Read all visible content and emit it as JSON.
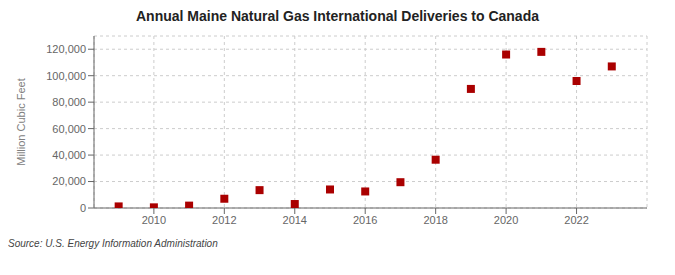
{
  "chart_data": {
    "type": "scatter",
    "title": "Annual Maine Natural Gas International Deliveries to Canada",
    "y_label": "Million Cubic Feet",
    "annotations": [
      "Source: U.S. Energy Information Administration"
    ],
    "x": [
      2009,
      2010,
      2011,
      2012,
      2013,
      2014,
      2015,
      2016,
      2017,
      2018,
      2019,
      2020,
      2021,
      2022,
      2023
    ],
    "values": [
      1200,
      500,
      1800,
      7000,
      13500,
      3000,
      14000,
      12500,
      19500,
      36500,
      90000,
      116000,
      118000,
      96000,
      107000
    ],
    "color": "#aa0000",
    "marker": "square",
    "xlim": [
      2008.3,
      2024.0
    ],
    "xticks": [
      2010,
      2012,
      2014,
      2016,
      2018,
      2020,
      2022
    ],
    "ylim": [
      0,
      130000
    ],
    "yticks": [
      0,
      {
        "value": 20000,
        "label": "20,000"
      },
      {
        "value": 40000,
        "label": "40,000"
      },
      {
        "value": 60000,
        "label": "60,000"
      },
      {
        "value": 80000,
        "label": "80,000"
      },
      {
        "value": 100000,
        "label": "100,000"
      },
      {
        "value": 120000,
        "label": "120,000"
      }
    ],
    "grid": true
  }
}
